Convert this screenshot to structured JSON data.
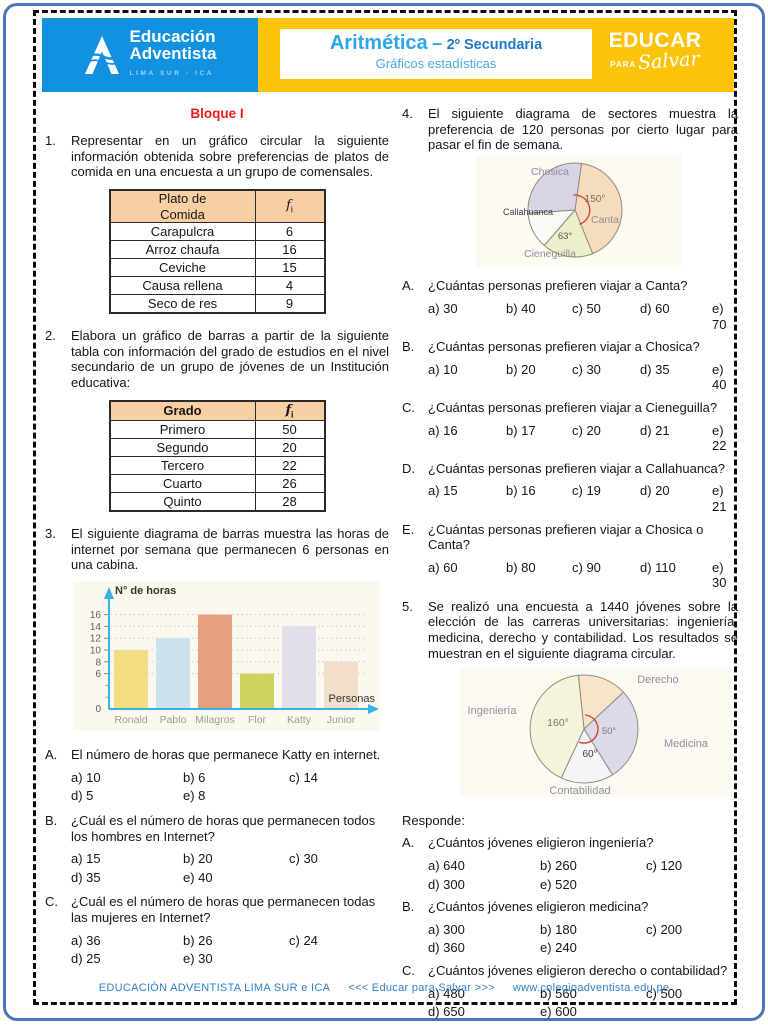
{
  "header": {
    "logo": {
      "line1": "Educación",
      "line2": "Adventista",
      "subtitle": "LIMA SUR - ICA"
    },
    "title": "Aritmética",
    "dash": "–",
    "grade": "2º Secundaria",
    "subtitle": "Gráficos estadísticas",
    "motto_line1": "EDUCAR",
    "motto_line2": "PARA",
    "motto_line3": "Salvar"
  },
  "section_title": "Bloque I",
  "problems": [
    {
      "number": "1.",
      "text": "Representar en un gráfico circular la siguiente información obtenida sobre preferencias de platos de comida en una encuesta a un grupo de comensales.",
      "table": {
        "headers": [
          "Plato de\nComida",
          "f_i"
        ],
        "header_bold": false,
        "rows": [
          [
            "Carapulcra",
            "6"
          ],
          [
            "Arroz chaufa",
            "16"
          ],
          [
            "Ceviche",
            "15"
          ],
          [
            "Causa rellena",
            "4"
          ],
          [
            "Seco de res",
            "9"
          ]
        ]
      }
    },
    {
      "number": "2.",
      "text": "Elabora un gráfico de barras a partir de la siguiente tabla con información del grado de estudios en el nivel secundario de un grupo de jóvenes de un Institución educativa:",
      "table": {
        "headers": [
          "Grado",
          "f_i"
        ],
        "header_bold": true,
        "rows": [
          [
            "Primero",
            "50"
          ],
          [
            "Segundo",
            "20"
          ],
          [
            "Tercero",
            "22"
          ],
          [
            "Cuarto",
            "26"
          ],
          [
            "Quinto",
            "28"
          ]
        ]
      }
    },
    {
      "number": "3.",
      "text": "El siguiente diagrama de barras muestra las horas de internet por semana que permanecen 6 personas en una cabina.",
      "questions": [
        {
          "label": "A.",
          "text": "El número de horas que permanece Katty en internet.",
          "options": [
            "a) 10",
            "b) 6",
            "c) 14",
            "d) 5",
            "e) 8"
          ]
        },
        {
          "label": "B.",
          "text": "¿Cuál es el número de horas que permanecen todos los hombres en Internet?",
          "options": [
            "a) 15",
            "b) 20",
            "c) 30",
            "d) 35",
            "e) 40"
          ]
        },
        {
          "label": "C.",
          "text": "¿Cuál es el número de horas que permanecen todas las mujeres en Internet?",
          "options": [
            "a) 36",
            "b) 26",
            "c) 24",
            "d) 25",
            "e) 30"
          ]
        }
      ]
    },
    {
      "number": "4.",
      "text": "El siguiente diagrama de sectores muestra la preferencia de 120 personas por cierto lugar para pasar el fin de semana.",
      "questions": [
        {
          "label": "A.",
          "text": "¿Cuántas personas prefieren viajar a Canta?",
          "options": [
            "a) 30",
            "b) 40",
            "c) 50",
            "d) 60",
            "e) 70"
          ]
        },
        {
          "label": "B.",
          "text": "¿Cuántas personas prefieren viajar a Chosica?",
          "options": [
            "a) 10",
            "b) 20",
            "c) 30",
            "d) 35",
            "e) 40"
          ]
        },
        {
          "label": "C.",
          "text": "¿Cuántas personas prefieren viajar a Cieneguilla?",
          "options": [
            "a) 16",
            "b) 17",
            "c) 20",
            "d) 21",
            "e) 22"
          ]
        },
        {
          "label": "D.",
          "text": "¿Cuántas personas prefieren viajar a Callahuanca?",
          "options": [
            "a) 15",
            "b) 16",
            "c) 19",
            "d) 20",
            "e) 21"
          ]
        },
        {
          "label": "E.",
          "text": "¿Cuántas personas prefieren viajar a Chosica o Canta?",
          "options": [
            "a) 60",
            "b) 80",
            "c) 90",
            "d) 110",
            "e) 30"
          ]
        }
      ]
    },
    {
      "number": "5.",
      "text": "Se realizó una encuesta a 1440 jóvenes sobre la elección de las carreras universitarias: ingeniería, medicina, derecho y contabilidad. Los resultados se muestran en el siguiente diagrama circular.",
      "responde": "Responde:",
      "questions": [
        {
          "label": "A.",
          "text": "¿Cuántos jóvenes eligieron ingeniería?",
          "options": [
            "a) 640",
            "b) 260",
            "c) 120",
            "d) 300",
            "e) 520"
          ]
        },
        {
          "label": "B.",
          "text": "¿Cuántos jóvenes eligieron medicina?",
          "options": [
            "a) 300",
            "b) 180",
            "c) 200",
            "d) 360",
            "e) 240"
          ]
        },
        {
          "label": "C.",
          "text": "¿Cuántos jóvenes eligieron derecho o contabilidad?",
          "options": [
            "a) 480",
            "b) 560",
            "c) 500",
            "d) 650",
            "e) 600"
          ]
        }
      ]
    }
  ],
  "chart_data": [
    {
      "type": "bar",
      "ylabel": "N° de horas",
      "xlabel": "Personas",
      "categories": [
        "Ronald",
        "Pablo",
        "Milagros",
        "Flor",
        "Katty",
        "Junior"
      ],
      "values": [
        10,
        12,
        16,
        6,
        14,
        8
      ],
      "yticks": [
        0,
        6,
        8,
        10,
        12,
        14,
        16
      ],
      "ylim": [
        0,
        17
      ],
      "grid": "dotted-horizontal",
      "colors": [
        "#f3dc82",
        "#cde2ec",
        "#e79f80",
        "#ccd35f",
        "#e2dfeb",
        "#f1dfca"
      ],
      "axis_color": "#35b2e6"
    },
    {
      "type": "pie",
      "total": 120,
      "slices": [
        {
          "label": "Canta",
          "degrees": 150,
          "angle_label": "150°",
          "color": "#f4dcbd"
        },
        {
          "label": "Cieneguilla",
          "degrees": 63,
          "angle_label": "63°",
          "color": "#edefcc"
        },
        {
          "label": "Callahuanca",
          "degrees": 45,
          "color": "#fbfbf6"
        },
        {
          "label": "Chosica",
          "degrees": 102,
          "color": "#d9d4e5"
        }
      ]
    },
    {
      "type": "pie",
      "total": 1440,
      "slices": [
        {
          "label": "Derecho",
          "degrees": 90,
          "color": "#f8e4ca"
        },
        {
          "label": "Medicina",
          "degrees": 50,
          "angle_label": "50°",
          "color": "#dcd9ea"
        },
        {
          "label": "Contabilidad",
          "degrees": 60,
          "angle_label": "60°",
          "color": "#f3f5f6"
        },
        {
          "label": "Ingeniería",
          "degrees": 160,
          "angle_label": "160°",
          "color": "#f5f3d9"
        }
      ]
    }
  ],
  "footer": {
    "left": "EDUCACIÓN ADVENTISTA LIMA SUR e ICA",
    "middle": "<<< Educar para Salvar >>>",
    "right": "www.colegioadventista.edu.pe"
  }
}
